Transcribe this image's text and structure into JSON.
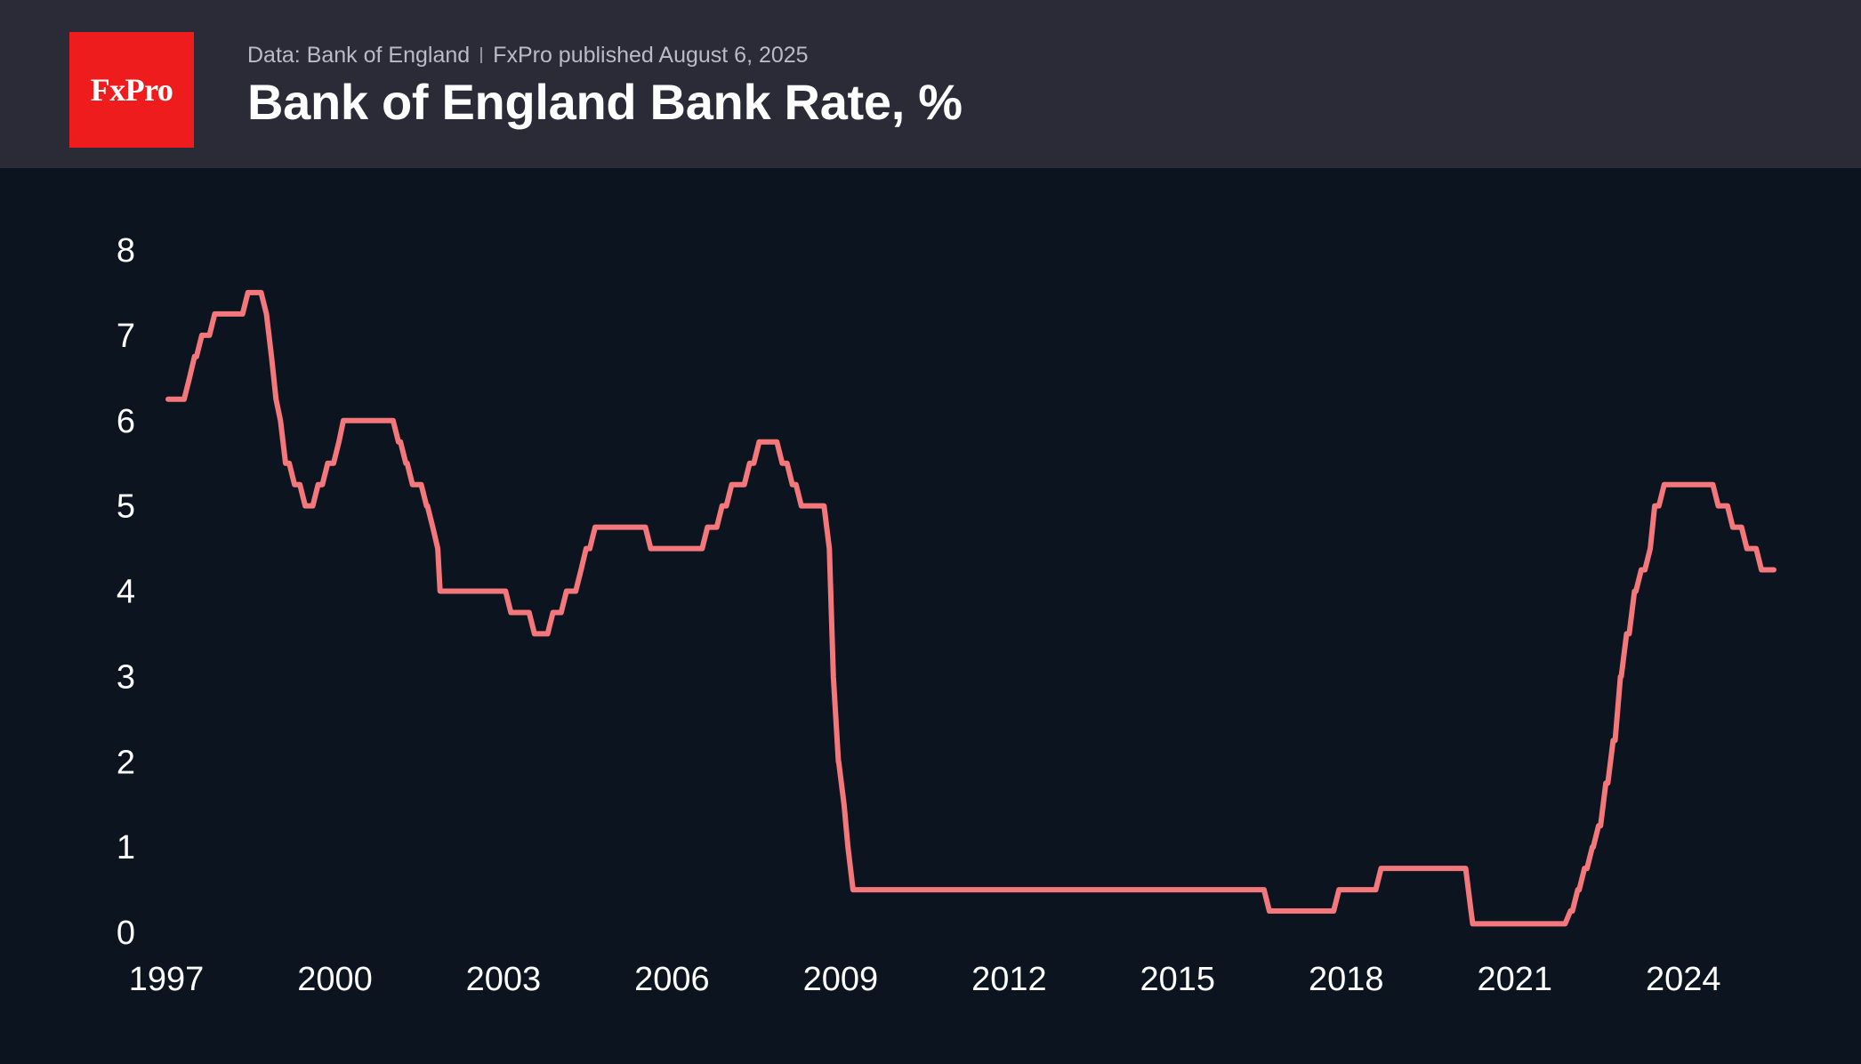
{
  "header": {
    "logo_text": "FxPro",
    "source_text": "Data: Bank of England",
    "publisher_text": "FxPro published August 6, 2025",
    "title": "Bank of England Bank Rate, %"
  },
  "colors": {
    "header_bg": "#2a2b37",
    "plot_bg": "#0c1420",
    "logo_bg": "#ee1c1c",
    "line": "#f4787b"
  },
  "chart_data": {
    "type": "line",
    "title": "Bank of England Bank Rate, %",
    "xlabel": "",
    "ylabel": "",
    "xlim": [
      1997.0,
      2025.58
    ],
    "ylim": [
      0,
      8
    ],
    "y_ticks": [
      0,
      1,
      2,
      3,
      4,
      5,
      6,
      7,
      8
    ],
    "x_ticks": [
      1997,
      2000,
      2003,
      2006,
      2009,
      2012,
      2015,
      2018,
      2021,
      2024
    ],
    "grid": false,
    "legend": "none",
    "series": [
      {
        "values": [
          [
            1997.0,
            6.25
          ],
          [
            1997.38,
            6.5
          ],
          [
            1997.47,
            6.75
          ],
          [
            1997.6,
            7.0
          ],
          [
            1997.83,
            7.25
          ],
          [
            1998.42,
            7.5
          ],
          [
            1998.75,
            7.25
          ],
          [
            1998.84,
            6.75
          ],
          [
            1998.92,
            6.25
          ],
          [
            1999.0,
            6.0
          ],
          [
            1999.09,
            5.5
          ],
          [
            1999.25,
            5.25
          ],
          [
            1999.44,
            5.0
          ],
          [
            1999.67,
            5.25
          ],
          [
            1999.84,
            5.5
          ],
          [
            2000.04,
            5.75
          ],
          [
            2000.12,
            6.0
          ],
          [
            2001.1,
            5.75
          ],
          [
            2001.23,
            5.5
          ],
          [
            2001.35,
            5.25
          ],
          [
            2001.6,
            5.0
          ],
          [
            2001.71,
            4.75
          ],
          [
            2001.8,
            4.5
          ],
          [
            2001.84,
            4.0
          ],
          [
            2003.1,
            3.75
          ],
          [
            2003.52,
            3.5
          ],
          [
            2003.85,
            3.75
          ],
          [
            2004.09,
            4.0
          ],
          [
            2004.35,
            4.25
          ],
          [
            2004.44,
            4.5
          ],
          [
            2004.6,
            4.75
          ],
          [
            2005.59,
            4.5
          ],
          [
            2006.6,
            4.75
          ],
          [
            2006.86,
            5.0
          ],
          [
            2007.03,
            5.25
          ],
          [
            2007.35,
            5.5
          ],
          [
            2007.52,
            5.75
          ],
          [
            2007.93,
            5.5
          ],
          [
            2008.11,
            5.25
          ],
          [
            2008.27,
            5.0
          ],
          [
            2008.77,
            4.5
          ],
          [
            2008.84,
            3.0
          ],
          [
            2008.93,
            2.0
          ],
          [
            2009.03,
            1.5
          ],
          [
            2009.1,
            1.0
          ],
          [
            2009.19,
            0.5
          ],
          [
            2016.6,
            0.25
          ],
          [
            2017.84,
            0.5
          ],
          [
            2018.59,
            0.75
          ],
          [
            2020.19,
            0.25
          ],
          [
            2020.22,
            0.1
          ],
          [
            2021.96,
            0.25
          ],
          [
            2022.09,
            0.5
          ],
          [
            2022.21,
            0.75
          ],
          [
            2022.35,
            1.0
          ],
          [
            2022.46,
            1.25
          ],
          [
            2022.59,
            1.75
          ],
          [
            2022.72,
            2.25
          ],
          [
            2022.85,
            3.0
          ],
          [
            2022.96,
            3.5
          ],
          [
            2023.1,
            4.0
          ],
          [
            2023.22,
            4.25
          ],
          [
            2023.38,
            4.5
          ],
          [
            2023.46,
            5.0
          ],
          [
            2023.63,
            5.25
          ],
          [
            2024.59,
            5.0
          ],
          [
            2024.85,
            4.75
          ],
          [
            2025.1,
            4.5
          ],
          [
            2025.36,
            4.25
          ],
          [
            2025.58,
            4.25
          ]
        ]
      }
    ]
  }
}
